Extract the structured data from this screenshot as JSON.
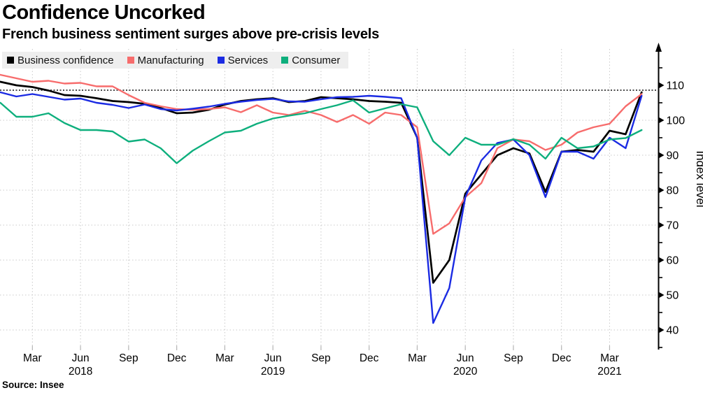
{
  "header": {
    "title": "Confidence Uncorked",
    "subtitle": "French business sentiment surges above pre-crisis levels"
  },
  "source": "Source: Insee",
  "chart_data": {
    "type": "line",
    "title": "Confidence Uncorked",
    "subtitle": "French business sentiment surges above pre-crisis levels",
    "ylabel": "Index level",
    "xlabel": "",
    "x_unit": "month",
    "x_start": "Jan 2018",
    "x_end": "May 2021",
    "x_points": 41,
    "ylim": [
      34,
      120
    ],
    "y_ticks": [
      40,
      50,
      60,
      70,
      80,
      90,
      100,
      110
    ],
    "y_minor_ticks": [
      35,
      45,
      55,
      65,
      75,
      85,
      95,
      105,
      115
    ],
    "reference_line": 108.6,
    "grid": true,
    "legend_position": "top-left",
    "colors": {
      "business": "#000000",
      "manufacturing": "#F76C6C",
      "services": "#1B2BE3",
      "consumer": "#0EAF7D",
      "reference": "#4a4a4a",
      "gridline": "#c9c9c9",
      "legend_bg": "#eeeeee"
    },
    "x_ticks": [
      {
        "m": 2,
        "label": "Mar"
      },
      {
        "m": 5,
        "label": "Jun",
        "year": "2018"
      },
      {
        "m": 8,
        "label": "Sep"
      },
      {
        "m": 11,
        "label": "Dec"
      },
      {
        "m": 14,
        "label": "Mar"
      },
      {
        "m": 17,
        "label": "Jun",
        "year": "2019"
      },
      {
        "m": 20,
        "label": "Sep"
      },
      {
        "m": 23,
        "label": "Dec"
      },
      {
        "m": 26,
        "label": "Mar"
      },
      {
        "m": 29,
        "label": "Jun",
        "year": "2020"
      },
      {
        "m": 32,
        "label": "Sep"
      },
      {
        "m": 35,
        "label": "Dec"
      },
      {
        "m": 38,
        "label": "Mar",
        "year": "2021"
      }
    ],
    "series": [
      {
        "name": "Business confidence",
        "color": "#000000",
        "values": [
          111,
          110,
          109.5,
          108.5,
          107.2,
          107,
          106.3,
          105.5,
          105.2,
          104.7,
          103.5,
          102,
          102.2,
          103,
          104.5,
          105.5,
          106,
          106.3,
          105.2,
          105.5,
          106.6,
          106.3,
          106,
          105.5,
          105.3,
          105,
          95,
          53.5,
          60,
          79,
          84.5,
          90,
          92,
          90.5,
          79.5,
          91,
          91.5,
          91,
          97,
          96,
          108
        ]
      },
      {
        "name": "Manufacturing",
        "color": "#F76C6C",
        "values": [
          113,
          112,
          111,
          111.3,
          110.5,
          110.7,
          109.7,
          109.7,
          107.2,
          105,
          104,
          103.2,
          103,
          103.2,
          103.7,
          102.3,
          104.3,
          102.2,
          101.5,
          102.7,
          101.5,
          99.5,
          101.5,
          99,
          102.2,
          101.5,
          98,
          67.5,
          70.5,
          78,
          82,
          92,
          94.5,
          94,
          91.5,
          93,
          96.5,
          98,
          99,
          104,
          107.5
        ]
      },
      {
        "name": "Services",
        "color": "#1B2BE3",
        "values": [
          108,
          106.8,
          107.5,
          106.7,
          105.9,
          106.2,
          105,
          104.4,
          103.5,
          104.5,
          103.2,
          102.8,
          103.3,
          103.9,
          104.7,
          105.3,
          105.8,
          106.1,
          105.4,
          105.3,
          106,
          106.6,
          106.7,
          107,
          106.7,
          106.3,
          95,
          42,
          52,
          78,
          88.5,
          93.5,
          94.5,
          90,
          78,
          91,
          91,
          89,
          95,
          92,
          107
        ]
      },
      {
        "name": "Consumer",
        "color": "#0EAF7D",
        "values": [
          105,
          101,
          101,
          102,
          99.2,
          97.2,
          97.2,
          96.8,
          93.9,
          94.5,
          92,
          87.7,
          91.3,
          94,
          96.5,
          97,
          99,
          100.5,
          101.3,
          102,
          103.2,
          104.3,
          105.7,
          102.2,
          103.4,
          104.6,
          103.7,
          94,
          90,
          95,
          93,
          93,
          94.6,
          93,
          89,
          95,
          92,
          92.5,
          94.5,
          94.9,
          97.2
        ]
      }
    ]
  }
}
